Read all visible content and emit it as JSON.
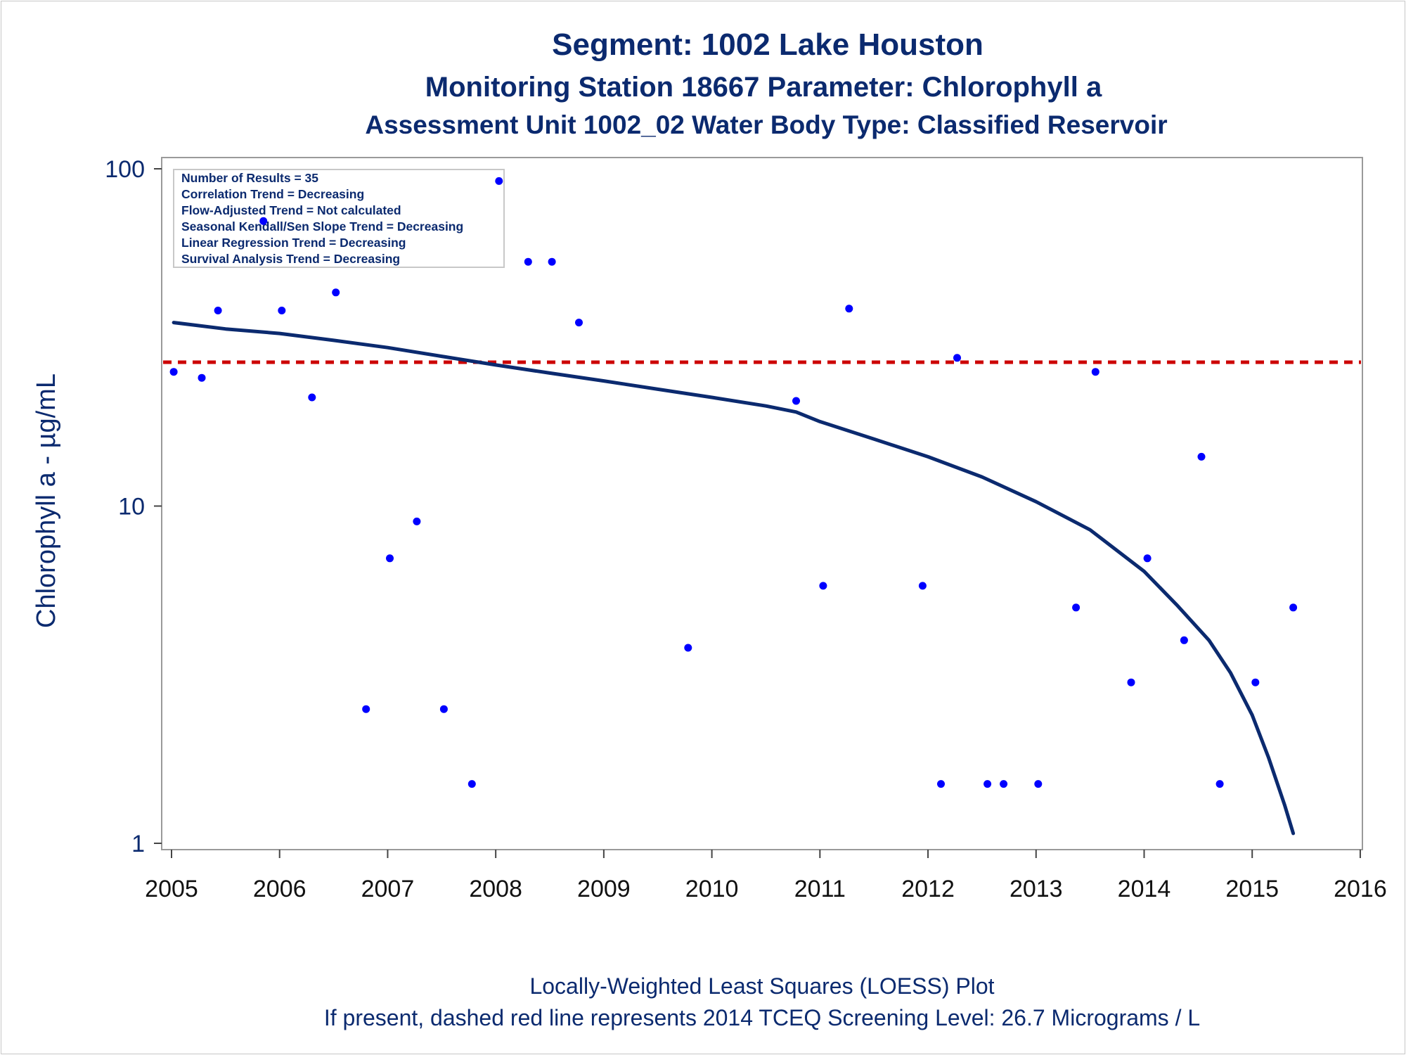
{
  "chart_data": {
    "type": "scatter",
    "title": "Segment: 1002  Lake Houston",
    "subtitle": "Monitoring Station 18667 Parameter: Chlorophyll a",
    "subtitle2": "Assessment Unit 1002_02   Water Body Type: Classified Reservoir",
    "ylabel": "Chlorophyll a -  µg/mL",
    "xlabel": "",
    "yscale": "log",
    "ylim": [
      1,
      100
    ],
    "xlim": [
      2005,
      2016
    ],
    "y_ticks": [
      "100",
      "10",
      "1"
    ],
    "y_tick_values": [
      100,
      10,
      1
    ],
    "x_ticks": [
      "2005",
      "2006",
      "2007",
      "2008",
      "2009",
      "2010",
      "2011",
      "2012",
      "2013",
      "2014",
      "2015",
      "2016"
    ],
    "x_tick_values": [
      2005,
      2006,
      2007,
      2008,
      2009,
      2010,
      2011,
      2012,
      2013,
      2014,
      2015,
      2016
    ],
    "grid": false,
    "stats_box": [
      "Number of Results = 35",
      "Correlation Trend = Decreasing",
      "Flow-Adjusted Trend = Not calculated",
      "Seasonal Kendall/Sen Slope Trend = Decreasing",
      "Linear Regression Trend = Decreasing",
      "Survival Analysis Trend = Decreasing"
    ],
    "screening_level": 26.7,
    "points": [
      {
        "x": 2005.02,
        "y": 25
      },
      {
        "x": 2005.28,
        "y": 24
      },
      {
        "x": 2005.43,
        "y": 38
      },
      {
        "x": 2005.85,
        "y": 70
      },
      {
        "x": 2006.02,
        "y": 38
      },
      {
        "x": 2006.3,
        "y": 21
      },
      {
        "x": 2006.52,
        "y": 43
      },
      {
        "x": 2006.8,
        "y": 2.5
      },
      {
        "x": 2007.02,
        "y": 7
      },
      {
        "x": 2007.27,
        "y": 9
      },
      {
        "x": 2007.52,
        "y": 2.5
      },
      {
        "x": 2007.78,
        "y": 1.5
      },
      {
        "x": 2008.03,
        "y": 92
      },
      {
        "x": 2008.3,
        "y": 53
      },
      {
        "x": 2008.52,
        "y": 53
      },
      {
        "x": 2008.77,
        "y": 35
      },
      {
        "x": 2009.78,
        "y": 3.8
      },
      {
        "x": 2010.78,
        "y": 20.5
      },
      {
        "x": 2011.03,
        "y": 5.8
      },
      {
        "x": 2011.27,
        "y": 38.5
      },
      {
        "x": 2011.95,
        "y": 5.8
      },
      {
        "x": 2012.12,
        "y": 1.5
      },
      {
        "x": 2012.27,
        "y": 27.5
      },
      {
        "x": 2012.55,
        "y": 1.5
      },
      {
        "x": 2012.7,
        "y": 1.5
      },
      {
        "x": 2013.02,
        "y": 1.5
      },
      {
        "x": 2013.37,
        "y": 5
      },
      {
        "x": 2013.55,
        "y": 25
      },
      {
        "x": 2013.88,
        "y": 3
      },
      {
        "x": 2014.03,
        "y": 7
      },
      {
        "x": 2014.37,
        "y": 4
      },
      {
        "x": 2014.53,
        "y": 14
      },
      {
        "x": 2014.7,
        "y": 1.5
      },
      {
        "x": 2015.03,
        "y": 3
      },
      {
        "x": 2015.38,
        "y": 5
      }
    ],
    "loess": [
      {
        "x": 2005.02,
        "y": 35
      },
      {
        "x": 2005.5,
        "y": 33.5
      },
      {
        "x": 2006.0,
        "y": 32.5
      },
      {
        "x": 2006.5,
        "y": 31
      },
      {
        "x": 2007.0,
        "y": 29.5
      },
      {
        "x": 2007.5,
        "y": 27.8
      },
      {
        "x": 2008.0,
        "y": 26.2
      },
      {
        "x": 2008.5,
        "y": 24.8
      },
      {
        "x": 2009.0,
        "y": 23.5
      },
      {
        "x": 2009.5,
        "y": 22.2
      },
      {
        "x": 2010.0,
        "y": 21
      },
      {
        "x": 2010.5,
        "y": 19.8
      },
      {
        "x": 2010.78,
        "y": 19
      },
      {
        "x": 2011.0,
        "y": 17.8
      },
      {
        "x": 2011.5,
        "y": 15.8
      },
      {
        "x": 2012.0,
        "y": 14
      },
      {
        "x": 2012.5,
        "y": 12.2
      },
      {
        "x": 2013.0,
        "y": 10.3
      },
      {
        "x": 2013.5,
        "y": 8.5
      },
      {
        "x": 2014.0,
        "y": 6.4
      },
      {
        "x": 2014.3,
        "y": 5.1
      },
      {
        "x": 2014.6,
        "y": 4.0
      },
      {
        "x": 2014.8,
        "y": 3.2
      },
      {
        "x": 2015.0,
        "y": 2.4
      },
      {
        "x": 2015.15,
        "y": 1.8
      },
      {
        "x": 2015.3,
        "y": 1.3
      },
      {
        "x": 2015.38,
        "y": 1.07
      }
    ],
    "colors": {
      "points": "#0000ff",
      "loess": "#0b2a6f",
      "screening_line": "#cc0000",
      "text": "#0b2a6f"
    }
  },
  "footnotes": {
    "line1": "Locally-Weighted Least Squares (LOESS) Plot",
    "line2": "If present, dashed red line represents 2014 TCEQ Screening Level: 26.7 Micrograms / L"
  }
}
